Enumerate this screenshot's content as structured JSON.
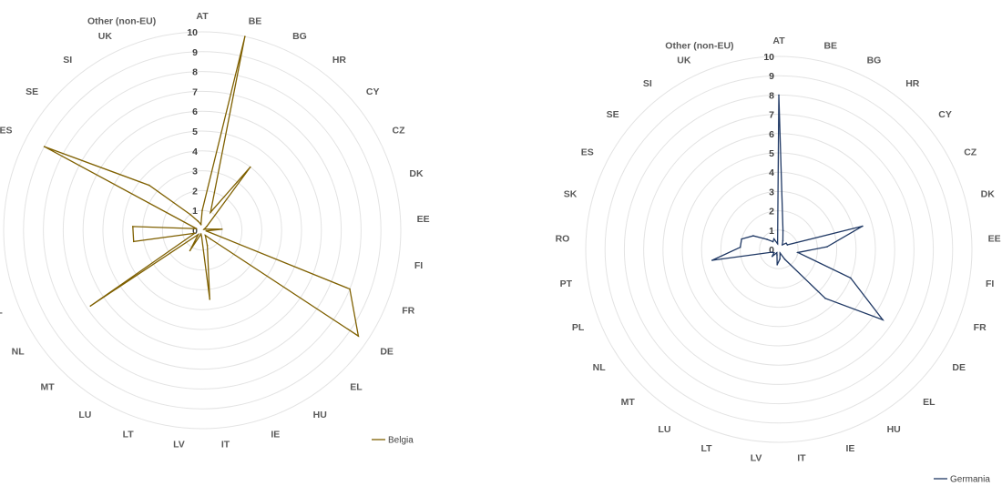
{
  "chart_data": [
    {
      "type": "radar",
      "categories": [
        "AT",
        "BE",
        "BG",
        "HR",
        "CY",
        "CZ",
        "DK",
        "EE",
        "FI",
        "FR",
        "DE",
        "EL",
        "HU",
        "IE",
        "IT",
        "LV",
        "LT",
        "LU",
        "MT",
        "NL",
        "PL",
        "PT",
        "RO",
        "SK",
        "ES",
        "SE",
        "SI",
        "UK",
        "Other (non-EU)"
      ],
      "rlim": [
        0,
        10
      ],
      "ticks": [
        "0",
        "1",
        "2",
        "3",
        "4",
        "5",
        "6",
        "7",
        "8",
        "9",
        "10"
      ],
      "series": [
        {
          "name": "Belgia",
          "color": "#7f6000",
          "values": [
            1,
            10,
            1,
            4,
            0.3,
            0.1,
            0.2,
            1,
            0.2,
            8,
            9.5,
            0.6,
            0.3,
            0.8,
            3.5,
            0.3,
            0.2,
            1.2,
            0.3,
            6.8,
            0.4,
            3.5,
            3.5,
            0.3,
            9,
            3.5,
            1,
            0.5,
            0.3
          ]
        },
        {
          "name": "Germania",
          "color": "#1f3864",
          "values": [
            8,
            1,
            0.5,
            0.3,
            0.5,
            0.5,
            4.5,
            2.5,
            1,
            4,
            6.5,
            3.5,
            0.6,
            0.2,
            0.5,
            0.8,
            0.3,
            0.2,
            0.5,
            0.3,
            0.4,
            3.5,
            2,
            2,
            1.5,
            0.8,
            0.5,
            0.6,
            0.3
          ]
        }
      ]
    }
  ]
}
